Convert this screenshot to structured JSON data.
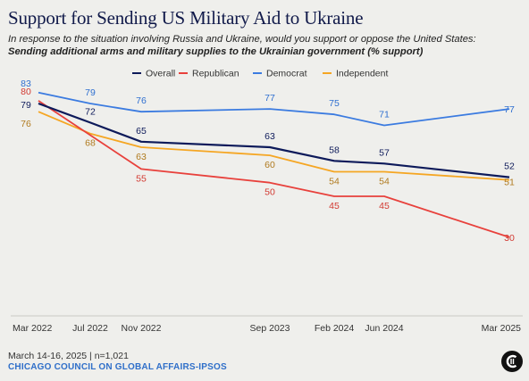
{
  "header": {
    "title": "Support for Sending US Military Aid to Ukraine",
    "subtitle_intro": "In response to the situation involving Russia and Ukraine, would you support or oppose the United States:",
    "subtitle_bold": "Sending additional arms and military supplies to the Ukrainian government (% support)"
  },
  "footer": {
    "date": "March 14-16, 2025 | n=1,021",
    "source": "CHICAGO COUNCIL ON GLOBAL AFFAIRS-IPSOS"
  },
  "logo": {
    "icon": "chicago-council-logo-icon"
  },
  "chart_data": {
    "type": "line",
    "x": [
      "Mar 2022",
      "Jul 2022",
      "Nov 2022",
      "Sep 2023",
      "Feb 2024",
      "Jun 2024",
      "Mar 2025"
    ],
    "series": [
      {
        "name": "Overall",
        "color": "#0d1a5a",
        "values": [
          79,
          72,
          65,
          63,
          58,
          57,
          52
        ]
      },
      {
        "name": "Republican",
        "color": "#e8413c",
        "values": [
          80,
          null,
          55,
          50,
          45,
          45,
          30
        ]
      },
      {
        "name": "Democrat",
        "color": "#3b7be0",
        "values": [
          83,
          79,
          76,
          77,
          75,
          71,
          77
        ]
      },
      {
        "name": "Independent",
        "color": "#f5a623",
        "values": [
          76,
          68,
          63,
          60,
          54,
          54,
          51
        ]
      }
    ],
    "label_colors": {
      "Overall": "#0d1a5a",
      "Republican": "#d23a32",
      "Democrat": "#2f6fd0",
      "Independent": "#b07a1e"
    },
    "legend_position": "top",
    "grid": false
  }
}
